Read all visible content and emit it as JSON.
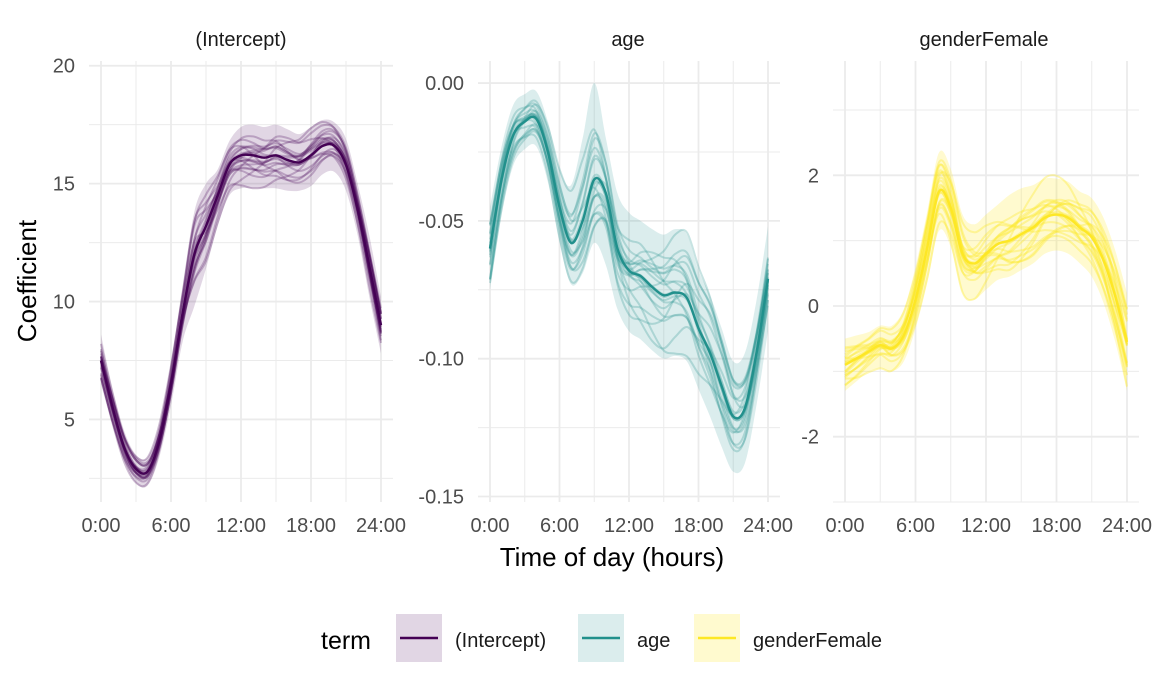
{
  "chart_data": {
    "type": "line",
    "description": "Faceted functional regression coefficient curves with confidence bands and bootstrap/fold replicate curves",
    "xlabel": "Time of day (hours)",
    "ylabel": "Coefficient",
    "x_ticks": [
      0,
      6,
      12,
      18,
      24
    ],
    "x_tick_labels": [
      "0:00",
      "6:00",
      "12:00",
      "18:00",
      "24:00"
    ],
    "xlim": [
      0,
      24
    ],
    "grid": true,
    "legend": {
      "title": "term",
      "position": "bottom",
      "entries": [
        {
          "label": "(Intercept)",
          "color": "#440154"
        },
        {
          "label": "age",
          "color": "#21908C"
        },
        {
          "label": "genderFemale",
          "color": "#FDE725"
        }
      ]
    },
    "facets": [
      {
        "title": "(Intercept)",
        "color": "#440154",
        "ylim": [
          1.5,
          20.2
        ],
        "y_ticks": [
          5,
          10,
          15,
          20
        ],
        "y_tick_labels": [
          "5",
          "10",
          "15",
          "20"
        ],
        "estimate": {
          "x": [
            0,
            1,
            2,
            3,
            4,
            5,
            6,
            7,
            8,
            9,
            10,
            11,
            12,
            13,
            14,
            15,
            16,
            17,
            18,
            19,
            20,
            21,
            22,
            23,
            24
          ],
          "y": [
            7.5,
            5.5,
            3.8,
            2.9,
            2.8,
            4.1,
            6.5,
            9.5,
            12.0,
            13.2,
            14.5,
            15.8,
            16.2,
            16.2,
            16.1,
            16.2,
            16.0,
            15.9,
            16.2,
            16.6,
            16.6,
            15.8,
            13.9,
            11.5,
            9.0
          ]
        },
        "band": {
          "lower": [
            6.5,
            4.7,
            3.2,
            2.3,
            2.2,
            3.4,
            5.6,
            8.3,
            9.8,
            11.4,
            13.2,
            14.5,
            14.8,
            14.8,
            14.8,
            14.8,
            14.7,
            14.7,
            14.9,
            15.4,
            15.5,
            14.7,
            12.8,
            10.2,
            7.8
          ],
          "upper": [
            8.6,
            6.3,
            4.5,
            3.5,
            3.4,
            4.8,
            7.4,
            10.6,
            13.8,
            15.0,
            15.6,
            16.8,
            17.4,
            17.5,
            17.4,
            17.5,
            17.3,
            17.1,
            17.4,
            17.7,
            17.6,
            16.9,
            15.0,
            12.8,
            10.2
          ]
        }
      },
      {
        "title": "age",
        "color": "#21908C",
        "ylim": [
          -0.152,
          0.008
        ],
        "y_ticks": [
          0.0,
          -0.05,
          -0.1,
          -0.15
        ],
        "y_tick_labels": [
          "0.00",
          "-0.05",
          "-0.10",
          "-0.15"
        ],
        "estimate": {
          "x": [
            0,
            1,
            2,
            3,
            4,
            5,
            6,
            7,
            8,
            9,
            10,
            11,
            12,
            13,
            14,
            15,
            16,
            17,
            18,
            19,
            20,
            21,
            22,
            23,
            24
          ],
          "y": [
            -0.06,
            -0.035,
            -0.019,
            -0.014,
            -0.013,
            -0.025,
            -0.045,
            -0.058,
            -0.05,
            -0.035,
            -0.04,
            -0.06,
            -0.068,
            -0.07,
            -0.074,
            -0.077,
            -0.076,
            -0.078,
            -0.089,
            -0.098,
            -0.11,
            -0.121,
            -0.118,
            -0.098,
            -0.071
          ]
        },
        "band": {
          "lower": [
            -0.075,
            -0.048,
            -0.03,
            -0.024,
            -0.023,
            -0.036,
            -0.058,
            -0.073,
            -0.069,
            -0.058,
            -0.066,
            -0.082,
            -0.09,
            -0.093,
            -0.097,
            -0.1,
            -0.099,
            -0.101,
            -0.111,
            -0.121,
            -0.132,
            -0.141,
            -0.138,
            -0.117,
            -0.09
          ],
          "upper": [
            -0.045,
            -0.023,
            -0.008,
            -0.004,
            -0.003,
            -0.014,
            -0.031,
            -0.037,
            -0.02,
            -0.0,
            -0.02,
            -0.04,
            -0.047,
            -0.05,
            -0.053,
            -0.055,
            -0.053,
            -0.055,
            -0.068,
            -0.077,
            -0.089,
            -0.101,
            -0.098,
            -0.079,
            -0.052
          ]
        }
      },
      {
        "title": "genderFemale",
        "color": "#FDE725",
        "ylim": [
          -3.0,
          3.75
        ],
        "y_ticks": [
          2,
          0,
          -2
        ],
        "y_tick_labels": [
          "2",
          "0",
          "-2"
        ],
        "estimate": {
          "x": [
            0,
            1,
            2,
            3,
            4,
            5,
            6,
            7,
            8,
            9,
            10,
            11,
            12,
            13,
            14,
            15,
            16,
            17,
            18,
            19,
            20,
            21,
            22,
            23,
            24
          ],
          "y": [
            -0.9,
            -0.8,
            -0.7,
            -0.6,
            -0.65,
            -0.45,
            0.1,
            0.9,
            1.75,
            1.5,
            0.8,
            0.65,
            0.8,
            0.95,
            1.0,
            1.1,
            1.2,
            1.35,
            1.4,
            1.35,
            1.2,
            1.05,
            0.7,
            0.15,
            -0.55
          ]
        },
        "band": {
          "lower": [
            -1.3,
            -1.15,
            -1.0,
            -0.95,
            -1.0,
            -0.85,
            -0.35,
            0.35,
            1.15,
            0.9,
            0.2,
            0.1,
            0.25,
            0.4,
            0.45,
            0.55,
            0.65,
            0.8,
            0.85,
            0.8,
            0.65,
            0.45,
            0.05,
            -0.55,
            -1.3
          ],
          "upper": [
            -0.5,
            -0.45,
            -0.4,
            -0.3,
            -0.3,
            -0.05,
            0.6,
            1.45,
            2.35,
            2.1,
            1.4,
            1.25,
            1.4,
            1.55,
            1.7,
            1.8,
            1.85,
            1.95,
            1.95,
            1.9,
            1.75,
            1.65,
            1.35,
            0.85,
            0.2
          ]
        }
      }
    ]
  }
}
